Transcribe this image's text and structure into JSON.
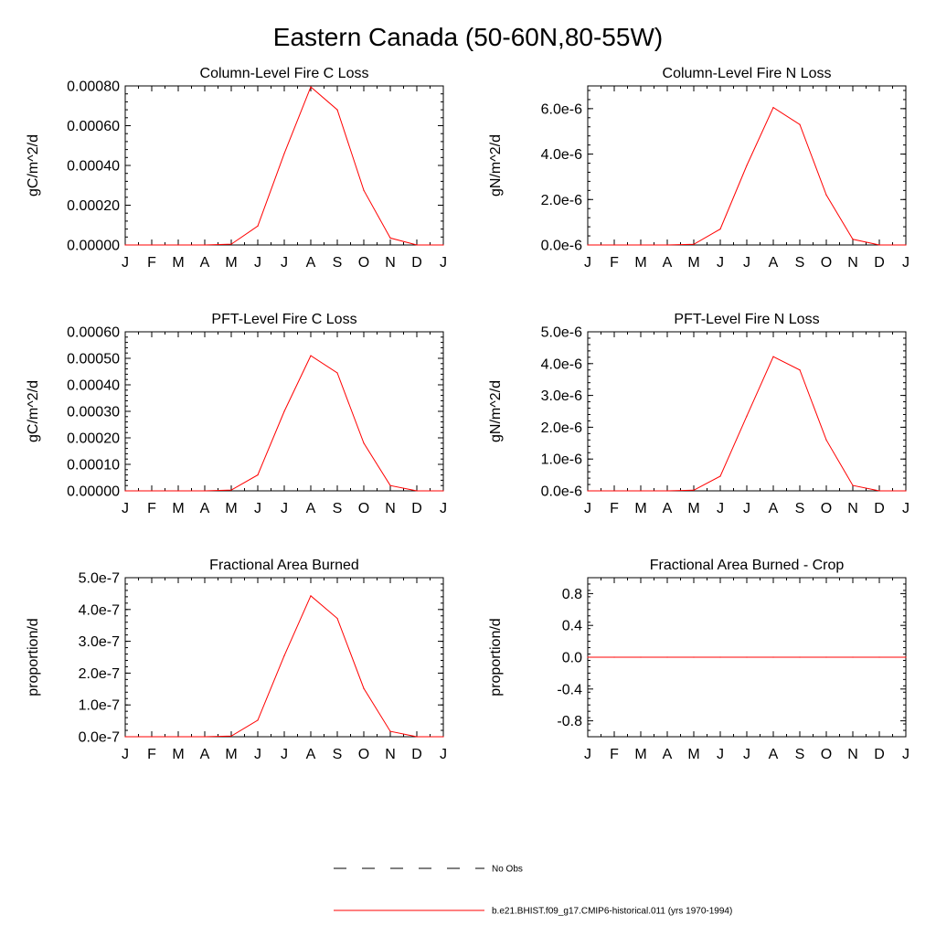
{
  "figure": {
    "title": "Eastern Canada (50-60N,80-55W)"
  },
  "legend": {
    "entries": [
      {
        "label": "No Obs",
        "style": "dashed",
        "color": "#000000"
      },
      {
        "label": "b.e21.BHIST.f09_g17.CMIP6-historical.011 (yrs 1970-1994)",
        "style": "solid",
        "color": "#ff0000"
      }
    ]
  },
  "colors": {
    "series": "#ff0000",
    "axis": "#000000"
  },
  "chart_data": [
    {
      "type": "line",
      "title": "Column-Level Fire C Loss",
      "ylabel": "gC/m^2/d",
      "xlabel": "",
      "x": [
        "J",
        "F",
        "M",
        "A",
        "M",
        "J",
        "J",
        "A",
        "S",
        "O",
        "N",
        "D",
        "J"
      ],
      "ylim": [
        0,
        0.0008
      ],
      "yticks": [
        "0.00000",
        "0.00020",
        "0.00040",
        "0.00060",
        "0.00080"
      ],
      "series": [
        {
          "color": "#ff0000",
          "values": [
            0,
            0,
            0,
            0,
            4e-06,
            9.5e-05,
            0.00046,
            0.000795,
            0.00068,
            0.000275,
            3.5e-05,
            0,
            0
          ]
        }
      ]
    },
    {
      "type": "line",
      "title": "Column-Level Fire N Loss",
      "ylabel": "gN/m^2/d",
      "xlabel": "",
      "x": [
        "J",
        "F",
        "M",
        "A",
        "M",
        "J",
        "J",
        "A",
        "S",
        "O",
        "N",
        "D",
        "J"
      ],
      "ylim": [
        0,
        7e-06
      ],
      "yticks": [
        "0.0e-6",
        "2.0e-6",
        "4.0e-6",
        "6.0e-6"
      ],
      "series": [
        {
          "color": "#ff0000",
          "values": [
            0,
            0,
            0,
            0,
            3e-08,
            7e-07,
            3.5e-06,
            6.05e-06,
            5.3e-06,
            2.2e-06,
            2.5e-07,
            0,
            0
          ]
        }
      ]
    },
    {
      "type": "line",
      "title": "PFT-Level Fire C Loss",
      "ylabel": "gC/m^2/d",
      "xlabel": "",
      "x": [
        "J",
        "F",
        "M",
        "A",
        "M",
        "J",
        "J",
        "A",
        "S",
        "O",
        "N",
        "D",
        "J"
      ],
      "ylim": [
        0,
        0.0006
      ],
      "yticks": [
        "0.00000",
        "0.00010",
        "0.00020",
        "0.00030",
        "0.00040",
        "0.00050",
        "0.00060"
      ],
      "series": [
        {
          "color": "#ff0000",
          "values": [
            0,
            0,
            0,
            0,
            3e-06,
            6e-05,
            0.0003,
            0.00051,
            0.000445,
            0.00018,
            2e-05,
            0,
            0
          ]
        }
      ]
    },
    {
      "type": "line",
      "title": "PFT-Level Fire N Loss",
      "ylabel": "gN/m^2/d",
      "xlabel": "",
      "x": [
        "J",
        "F",
        "M",
        "A",
        "M",
        "J",
        "J",
        "A",
        "S",
        "O",
        "N",
        "D",
        "J"
      ],
      "ylim": [
        0,
        5e-06
      ],
      "yticks": [
        "0.0e-6",
        "1.0e-6",
        "2.0e-6",
        "3.0e-6",
        "4.0e-6",
        "5.0e-6"
      ],
      "series": [
        {
          "color": "#ff0000",
          "values": [
            0,
            0,
            0,
            0,
            2e-08,
            4.6e-07,
            2.35e-06,
            4.22e-06,
            3.8e-06,
            1.6e-06,
            1.7e-07,
            0,
            0
          ]
        }
      ]
    },
    {
      "type": "line",
      "title": "Fractional Area Burned",
      "ylabel": "proportion/d",
      "xlabel": "",
      "x": [
        "J",
        "F",
        "M",
        "A",
        "M",
        "J",
        "J",
        "A",
        "S",
        "O",
        "N",
        "D",
        "J"
      ],
      "ylim": [
        0,
        5e-07
      ],
      "yticks": [
        "0.0e-7",
        "1.0e-7",
        "2.0e-7",
        "3.0e-7",
        "4.0e-7",
        "5.0e-7"
      ],
      "series": [
        {
          "color": "#ff0000",
          "values": [
            0,
            0,
            0,
            0,
            2e-09,
            5.2e-08,
            2.55e-07,
            4.43e-07,
            3.72e-07,
            1.52e-07,
            1.7e-08,
            0,
            0
          ]
        }
      ]
    },
    {
      "type": "line",
      "title": "Fractional Area Burned - Crop",
      "ylabel": "proportion/d",
      "xlabel": "",
      "x": [
        "J",
        "F",
        "M",
        "A",
        "M",
        "J",
        "J",
        "A",
        "S",
        "O",
        "N",
        "D",
        "J"
      ],
      "ylim": [
        -1.0,
        1.0
      ],
      "yticks": [
        "-0.8",
        "-0.4",
        "0.0",
        "0.4",
        "0.8"
      ],
      "ytick_values": [
        -0.8,
        -0.4,
        0.0,
        0.4,
        0.8
      ],
      "series": [
        {
          "color": "#ff0000",
          "values": [
            0,
            0,
            0,
            0,
            0,
            0,
            0,
            0,
            0,
            0,
            0,
            0,
            0
          ]
        }
      ]
    }
  ]
}
